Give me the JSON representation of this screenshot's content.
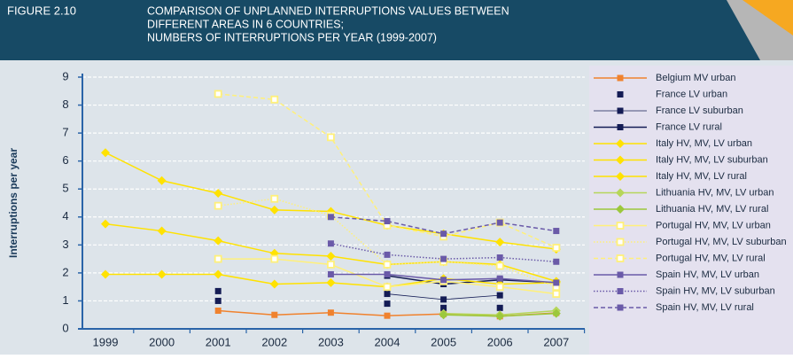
{
  "chart_data": {
    "type": "line",
    "figure_label": "FIGURE 2.10",
    "title_lines": [
      "COMPARISON OF UNPLANNED INTERRUPTIONS VALUES BETWEEN",
      "DIFFERENT AREAS IN 6 COUNTRIES;",
      "NUMBERS OF INTERRUPTIONS PER YEAR (1999-2007)"
    ],
    "y_label": "Interruptions per year",
    "categories": [
      "1999",
      "2000",
      "2001",
      "2002",
      "2003",
      "2004",
      "2005",
      "2006",
      "2007"
    ],
    "ylim": [
      0,
      9
    ],
    "yticks": [
      0,
      1,
      2,
      3,
      4,
      5,
      6,
      7,
      8,
      9
    ],
    "grid": true,
    "series": [
      {
        "name": "Belgium MV urban",
        "color": "#f0822e",
        "marker": "square",
        "line": "solid",
        "values": [
          null,
          null,
          0.65,
          0.5,
          0.58,
          0.47,
          0.53,
          0.45,
          0.57
        ]
      },
      {
        "name": "France LV urban",
        "color": "#141c55",
        "marker": "square",
        "line": "none",
        "values": [
          null,
          null,
          1.0,
          null,
          null,
          0.9,
          0.75,
          0.75,
          null
        ]
      },
      {
        "name": "France LV suburban",
        "color": "#141c55",
        "marker": "square",
        "line": "thin",
        "values": [
          null,
          null,
          1.35,
          null,
          null,
          1.25,
          1.05,
          1.2,
          null
        ]
      },
      {
        "name": "France LV rural",
        "color": "#141c55",
        "marker": "square",
        "line": "solid",
        "values": [
          null,
          null,
          null,
          null,
          null,
          1.9,
          1.6,
          1.75,
          1.65
        ]
      },
      {
        "name": "Italy HV, MV, LV urban",
        "color": "#ffe200",
        "marker": "diamond",
        "line": "solid",
        "values": [
          1.95,
          1.95,
          1.95,
          1.6,
          1.65,
          1.5,
          1.8,
          1.6,
          1.65
        ]
      },
      {
        "name": "Italy HV, MV, LV suburban",
        "color": "#ffe200",
        "marker": "diamond",
        "line": "solid",
        "values": [
          3.75,
          3.5,
          3.15,
          2.7,
          2.6,
          2.3,
          2.4,
          2.3,
          1.7
        ]
      },
      {
        "name": "Italy HV, MV, LV rural",
        "color": "#ffe200",
        "marker": "diamond",
        "line": "solid",
        "values": [
          6.3,
          5.3,
          4.85,
          4.25,
          4.2,
          3.7,
          3.4,
          3.1,
          2.85
        ]
      },
      {
        "name": "Lithuania HV, MV, LV urban",
        "color": "#b6d65a",
        "marker": "diamond",
        "line": "solid",
        "values": [
          null,
          null,
          null,
          null,
          null,
          null,
          0.55,
          0.5,
          0.65
        ]
      },
      {
        "name": "Lithuania HV, MV, LV rural",
        "color": "#9cc83c",
        "marker": "diamond",
        "line": "solid",
        "values": [
          null,
          null,
          null,
          null,
          null,
          null,
          0.5,
          0.45,
          0.55
        ]
      },
      {
        "name": "Portugal HV, MV, LV urban",
        "color": "#fff07a",
        "marker": "open-square",
        "line": "solid",
        "values": [
          null,
          null,
          2.5,
          2.5,
          2.3,
          1.5,
          1.7,
          1.5,
          1.25
        ]
      },
      {
        "name": "Portugal HV, MV, LV suburban",
        "color": "#fff07a",
        "marker": "open-square",
        "line": "dotted",
        "values": [
          null,
          null,
          4.4,
          4.65,
          4.05,
          2.3,
          2.4,
          2.25,
          1.5
        ]
      },
      {
        "name": "Portugal HV, MV, LV rural",
        "color": "#fff07a",
        "marker": "open-square",
        "line": "dashed",
        "values": [
          null,
          null,
          8.4,
          8.2,
          6.85,
          3.7,
          3.3,
          3.8,
          2.9
        ]
      },
      {
        "name": "Spain HV, MV, LV urban",
        "color": "#6a5aa8",
        "marker": "square",
        "line": "solid",
        "values": [
          null,
          null,
          null,
          null,
          1.95,
          1.95,
          1.75,
          1.8,
          1.65
        ]
      },
      {
        "name": "Spain HV, MV, LV suburban",
        "color": "#6a5aa8",
        "marker": "square",
        "line": "dotted",
        "values": [
          null,
          null,
          null,
          null,
          3.05,
          2.65,
          2.5,
          2.55,
          2.4
        ]
      },
      {
        "name": "Spain HV, MV, LV rural",
        "color": "#6a5aa8",
        "marker": "square",
        "line": "dashed",
        "values": [
          null,
          null,
          null,
          null,
          4.0,
          3.85,
          3.4,
          3.8,
          3.5
        ]
      }
    ]
  }
}
